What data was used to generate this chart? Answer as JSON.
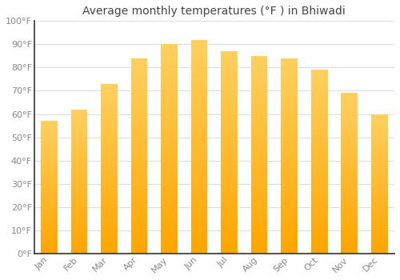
{
  "title": "Average monthly temperatures (°F ) in Bhiwadi",
  "months": [
    "Jan",
    "Feb",
    "Mar",
    "Apr",
    "May",
    "Jun",
    "Jul",
    "Aug",
    "Sep",
    "Oct",
    "Nov",
    "Dec"
  ],
  "values": [
    57,
    62,
    73,
    84,
    90,
    92,
    87,
    85,
    84,
    79,
    69,
    60
  ],
  "bar_color_bottom": "#FFC020",
  "bar_color_top": "#FFB347",
  "background_color": "#FFFFFF",
  "grid_color": "#DDDDDD",
  "ylim": [
    0,
    100
  ],
  "yticks": [
    0,
    10,
    20,
    30,
    40,
    50,
    60,
    70,
    80,
    90,
    100
  ],
  "ytick_labels": [
    "0°F",
    "10°F",
    "20°F",
    "30°F",
    "40°F",
    "50°F",
    "60°F",
    "70°F",
    "80°F",
    "90°F",
    "100°F"
  ],
  "title_fontsize": 10,
  "tick_fontsize": 8,
  "title_color": "#444444",
  "tick_color": "#888888",
  "bar_width": 0.55,
  "spine_color": "#333333"
}
